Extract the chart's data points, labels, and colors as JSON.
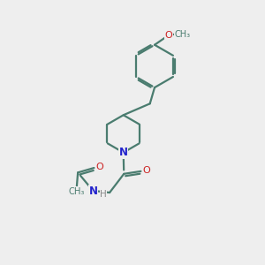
{
  "background_color": "#eeeeee",
  "bond_color": "#4a7c6f",
  "N_color": "#2222cc",
  "O_color": "#cc2222",
  "H_color": "#888888",
  "line_width": 1.6,
  "figsize": [
    3.0,
    3.0
  ],
  "dpi": 100,
  "xlim": [
    0,
    10
  ],
  "ylim": [
    0,
    10
  ]
}
